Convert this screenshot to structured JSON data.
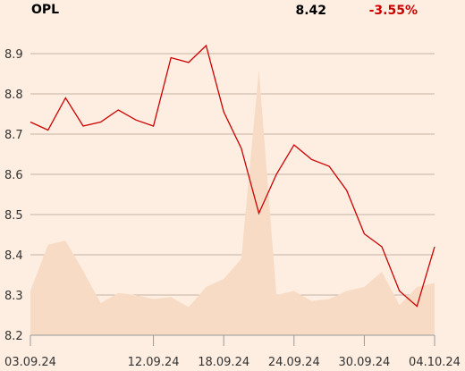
{
  "header": {
    "symbol": "OPL",
    "price": "8.42",
    "change": "-3.55%"
  },
  "colors": {
    "background": "#fdeee1",
    "price_line": "#cc0000",
    "volume_fill": "#f8dbc5",
    "grid": "#c8b4a4",
    "change_negative": "#cc0000"
  },
  "chart_data": {
    "type": "line",
    "ylim": [
      8.2,
      9.0
    ],
    "y_ticks": [
      "8.2",
      "8.3",
      "8.4",
      "8.5",
      "8.6",
      "8.7",
      "8.8",
      "8.9"
    ],
    "x_ticks": [
      {
        "label": "03.09.24",
        "index": 0
      },
      {
        "label": "12.09.24",
        "index": 7
      },
      {
        "label": "18.09.24",
        "index": 11
      },
      {
        "label": "24.09.24",
        "index": 15
      },
      {
        "label": "30.09.24",
        "index": 19
      },
      {
        "label": "04.10.24",
        "index": 23
      }
    ],
    "grid": true,
    "series": [
      {
        "type": "line",
        "values": [
          8.73,
          8.71,
          8.79,
          8.72,
          8.73,
          8.76,
          8.735,
          8.72,
          8.89,
          8.878,
          8.92,
          8.755,
          8.665,
          8.503,
          8.6,
          8.673,
          8.637,
          8.62,
          8.56,
          8.452,
          8.42,
          8.31,
          8.272,
          8.42
        ]
      },
      {
        "type": "area",
        "values": [
          8.31,
          8.425,
          8.435,
          8.36,
          8.28,
          8.305,
          8.3,
          8.29,
          8.295,
          8.27,
          8.32,
          8.34,
          8.39,
          8.86,
          8.3,
          8.31,
          8.285,
          8.29,
          8.31,
          8.32,
          8.358,
          8.275,
          8.32,
          8.33
        ]
      }
    ]
  }
}
